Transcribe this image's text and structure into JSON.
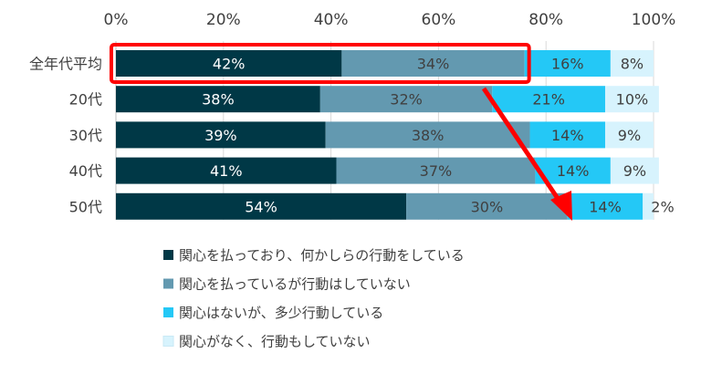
{
  "chart_data": {
    "type": "bar",
    "orientation": "horizontal",
    "stacked": true,
    "categories": [
      "全年代平均",
      "20代",
      "30代",
      "40代",
      "50代"
    ],
    "series": [
      {
        "name": "関心を払っており、何かしらの行動をしている",
        "color": "#003846",
        "label_color": "#ffffff",
        "values": [
          42,
          38,
          39,
          41,
          54
        ],
        "labels": [
          "42%",
          "38%",
          "39%",
          "41%",
          "54%"
        ]
      },
      {
        "name": "関心を払っているが行動はしていない",
        "color": "#6399b0",
        "label_color": "#404040",
        "values": [
          34,
          32,
          38,
          37,
          30
        ],
        "labels": [
          "34%",
          "32%",
          "38%",
          "37%",
          "30%"
        ]
      },
      {
        "name": "関心はないが、多少行動している",
        "color": "#24c8f6",
        "label_color": "#404040",
        "values": [
          16,
          21,
          14,
          14,
          14
        ],
        "labels": [
          "16%",
          "21%",
          "14%",
          "14%",
          "14%"
        ]
      },
      {
        "name": "関心がなく、行動もしていない",
        "color": "#d7f3fd",
        "label_color": "#404040",
        "values": [
          8,
          10,
          9,
          9,
          2
        ],
        "labels": [
          "8%",
          "10%",
          "9%",
          "9%",
          "2%"
        ]
      }
    ],
    "x_ticks": [
      "0%",
      "20%",
      "40%",
      "60%",
      "80%",
      "100%"
    ],
    "xlim": [
      0,
      100
    ],
    "x_axis_position": "top",
    "grid": true,
    "legend_position": "bottom",
    "annotations": [
      {
        "kind": "highlight-box",
        "target": "全年代平均",
        "color": "#ff0000"
      },
      {
        "kind": "arrow",
        "color": "#ff0000",
        "from_category": "全年代平均",
        "to_category": "50代"
      }
    ]
  }
}
